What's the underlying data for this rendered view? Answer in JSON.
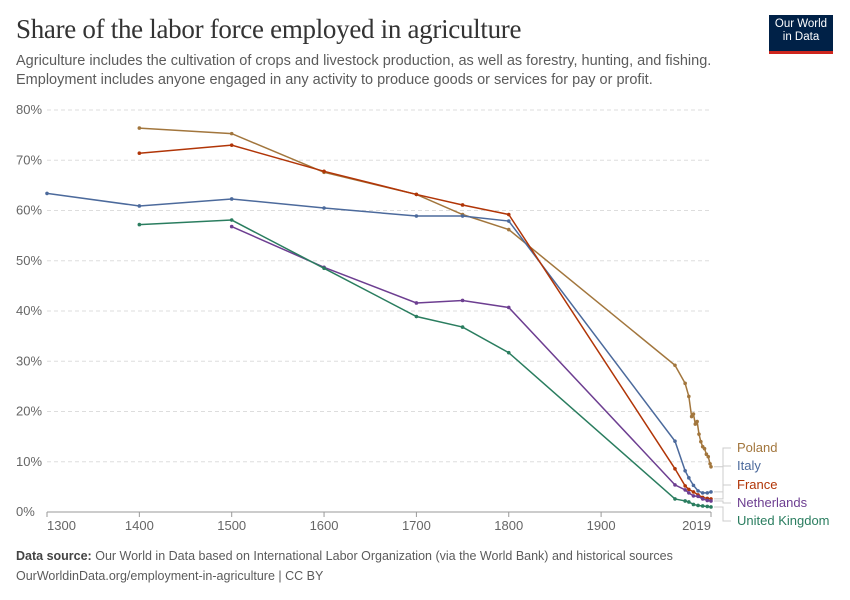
{
  "header": {
    "title": "Share of the labor force employed in agriculture",
    "subtitle_line1": "Agriculture includes the cultivation of crops and livestock production, as well as forestry, hunting, and fishing.",
    "subtitle_line2": "Employment includes anyone engaged in any activity to produce goods or services for pay or profit.",
    "logo": "Our World in Data"
  },
  "footer": {
    "source_label": "Data source:",
    "source": "Our World in Data based on International Labor Organization (via the World Bank) and historical sources",
    "url": "OurWorldinData.org/employment-in-agriculture | CC BY"
  },
  "chart_data": {
    "type": "line",
    "title": "Share of the labor force employed in agriculture",
    "xlim": [
      1300,
      2019
    ],
    "ylim": [
      0,
      80
    ],
    "x_ticks": [
      1300,
      1400,
      1500,
      1600,
      1700,
      1800,
      1900,
      2019
    ],
    "y_ticks": [
      0,
      10,
      20,
      30,
      40,
      50,
      60,
      70,
      80
    ],
    "y_unit": "%",
    "grid": "horizontal dashed",
    "legend": "right, line labels",
    "series": [
      {
        "name": "Poland",
        "color": "#a2763d",
        "points": [
          [
            1400,
            76.4
          ],
          [
            1500,
            75.3
          ],
          [
            1600,
            67.6
          ],
          [
            1700,
            63.2
          ],
          [
            1750,
            59.2
          ],
          [
            1800,
            56.2
          ],
          [
            1980,
            29.2
          ],
          [
            1991,
            25.6
          ],
          [
            1995,
            23
          ],
          [
            1998,
            19
          ],
          [
            2000,
            19.5
          ],
          [
            2002,
            17.5
          ],
          [
            2004,
            18
          ],
          [
            2006,
            15.5
          ],
          [
            2008,
            14
          ],
          [
            2010,
            13
          ],
          [
            2012,
            12.6
          ],
          [
            2014,
            11.5
          ],
          [
            2016,
            11
          ],
          [
            2018,
            9.6
          ],
          [
            2019,
            9.0
          ]
        ]
      },
      {
        "name": "Italy",
        "color": "#4c6a9c",
        "points": [
          [
            1300,
            63.4
          ],
          [
            1400,
            60.9
          ],
          [
            1500,
            62.3
          ],
          [
            1600,
            60.5
          ],
          [
            1700,
            58.9
          ],
          [
            1750,
            58.9
          ],
          [
            1800,
            57.9
          ],
          [
            1980,
            14.1
          ],
          [
            1991,
            8.2
          ],
          [
            1995,
            6.8
          ],
          [
            2000,
            5.3
          ],
          [
            2005,
            4.2
          ],
          [
            2010,
            3.8
          ],
          [
            2015,
            3.8
          ],
          [
            2019,
            4.0
          ]
        ]
      },
      {
        "name": "France",
        "color": "#b13507",
        "points": [
          [
            1400,
            71.4
          ],
          [
            1500,
            73.0
          ],
          [
            1600,
            67.8
          ],
          [
            1700,
            63.2
          ],
          [
            1750,
            61.1
          ],
          [
            1800,
            59.2
          ],
          [
            1980,
            8.6
          ],
          [
            1991,
            5.2
          ],
          [
            1995,
            4.5
          ],
          [
            2000,
            4.0
          ],
          [
            2005,
            3.4
          ],
          [
            2010,
            2.9
          ],
          [
            2015,
            2.7
          ],
          [
            2019,
            2.6
          ]
        ]
      },
      {
        "name": "Netherlands",
        "color": "#6d3e91",
        "points": [
          [
            1500,
            56.8
          ],
          [
            1600,
            48.7
          ],
          [
            1700,
            41.6
          ],
          [
            1750,
            42.1
          ],
          [
            1800,
            40.7
          ],
          [
            1980,
            5.4
          ],
          [
            1991,
            4.4
          ],
          [
            1995,
            3.8
          ],
          [
            2000,
            3.2
          ],
          [
            2005,
            3.1
          ],
          [
            2010,
            2.6
          ],
          [
            2015,
            2.3
          ],
          [
            2019,
            2.2
          ]
        ]
      },
      {
        "name": "United Kingdom",
        "color": "#2a7d5f",
        "points": [
          [
            1400,
            57.2
          ],
          [
            1500,
            58.1
          ],
          [
            1600,
            48.5
          ],
          [
            1700,
            38.9
          ],
          [
            1750,
            36.8
          ],
          [
            1800,
            31.7
          ],
          [
            1980,
            2.6
          ],
          [
            1991,
            2.2
          ],
          [
            1995,
            2.0
          ],
          [
            2000,
            1.5
          ],
          [
            2005,
            1.3
          ],
          [
            2010,
            1.2
          ],
          [
            2015,
            1.1
          ],
          [
            2019,
            1.0
          ]
        ]
      }
    ]
  }
}
